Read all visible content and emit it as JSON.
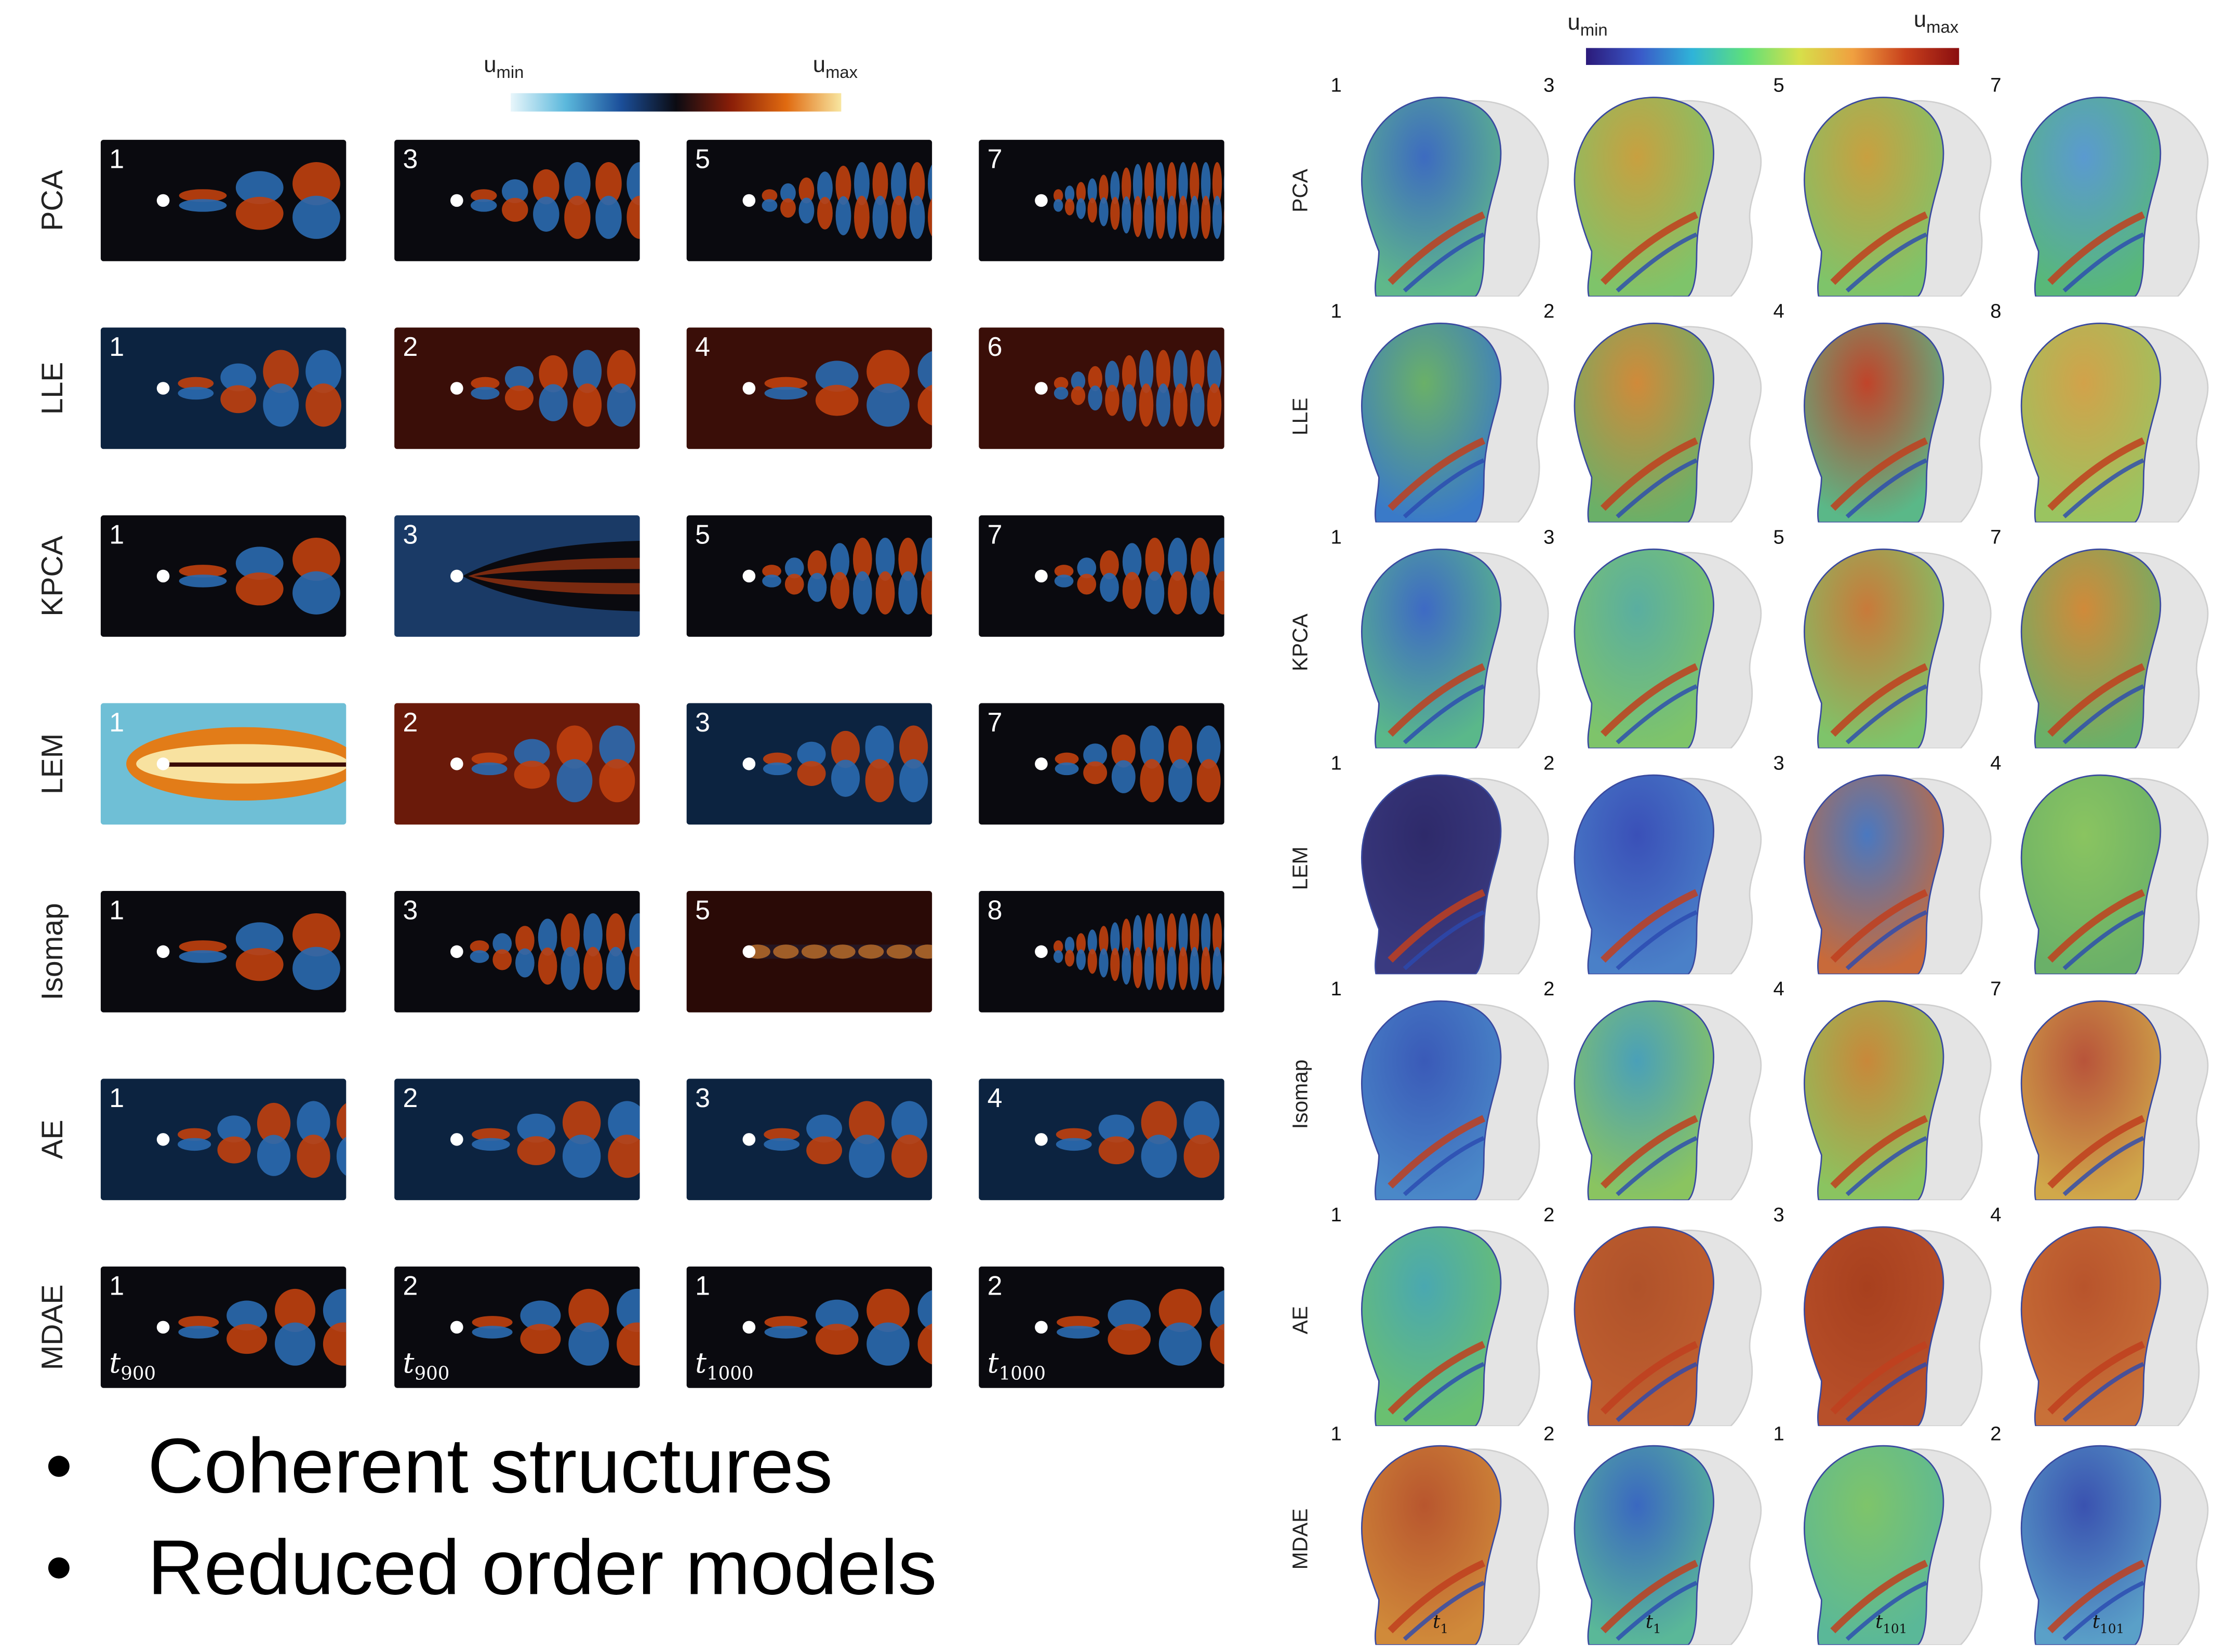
{
  "left_figure": {
    "colorbar": {
      "min_label": "u",
      "min_sub": "min",
      "max_label": "u",
      "max_sub": "max",
      "colors": [
        "#e8f6fb",
        "#5bb8dc",
        "#1b4f9a",
        "#0b0b12",
        "#8a1e08",
        "#e06a10",
        "#f8e6a0"
      ]
    },
    "rows": [
      {
        "method": "PCA",
        "modes": [
          "1",
          "3",
          "5",
          "7"
        ],
        "times": [
          "",
          "",
          "",
          ""
        ]
      },
      {
        "method": "LLE",
        "modes": [
          "1",
          "2",
          "4",
          "6"
        ],
        "times": [
          "",
          "",
          "",
          ""
        ]
      },
      {
        "method": "KPCA",
        "modes": [
          "1",
          "3",
          "5",
          "7"
        ],
        "times": [
          "",
          "",
          "",
          ""
        ]
      },
      {
        "method": "LEM",
        "modes": [
          "1",
          "2",
          "3",
          "7"
        ],
        "times": [
          "",
          "",
          "",
          ""
        ]
      },
      {
        "method": "Isomap",
        "modes": [
          "1",
          "3",
          "5",
          "8"
        ],
        "times": [
          "",
          "",
          "",
          ""
        ]
      },
      {
        "method": "AE",
        "modes": [
          "1",
          "2",
          "3",
          "4"
        ],
        "times": [
          "",
          "",
          "",
          ""
        ]
      },
      {
        "method": "MDAE",
        "modes": [
          "1",
          "2",
          "1",
          "2"
        ],
        "times": [
          "900",
          "900",
          "1000",
          "1000"
        ]
      }
    ]
  },
  "right_figure": {
    "colorbar": {
      "min_label": "u",
      "min_sub": "min",
      "max_label": "u",
      "max_sub": "max",
      "colors": [
        "#2b1a7a",
        "#3a58c8",
        "#2fb4d8",
        "#5ee07a",
        "#d6e04a",
        "#f0a040",
        "#c8401c",
        "#8a0e10"
      ]
    },
    "rows": [
      {
        "method": "PCA",
        "modes": [
          "1",
          "3",
          "5",
          "7"
        ],
        "times": [
          "",
          "",
          "",
          ""
        ]
      },
      {
        "method": "LLE",
        "modes": [
          "1",
          "2",
          "4",
          "8"
        ],
        "times": [
          "",
          "",
          "",
          ""
        ]
      },
      {
        "method": "KPCA",
        "modes": [
          "1",
          "3",
          "5",
          "7"
        ],
        "times": [
          "",
          "",
          "",
          ""
        ]
      },
      {
        "method": "LEM",
        "modes": [
          "1",
          "2",
          "3",
          "4"
        ],
        "times": [
          "",
          "",
          "",
          ""
        ]
      },
      {
        "method": "Isomap",
        "modes": [
          "1",
          "2",
          "4",
          "7"
        ],
        "times": [
          "",
          "",
          "",
          ""
        ]
      },
      {
        "method": "AE",
        "modes": [
          "1",
          "2",
          "3",
          "4"
        ],
        "times": [
          "",
          "",
          "",
          ""
        ]
      },
      {
        "method": "MDAE",
        "modes": [
          "1",
          "2",
          "1",
          "2"
        ],
        "times": [
          "1",
          "1",
          "101",
          "101"
        ]
      }
    ]
  },
  "bullets": [
    "Coherent structures",
    "Reduced order models"
  ]
}
